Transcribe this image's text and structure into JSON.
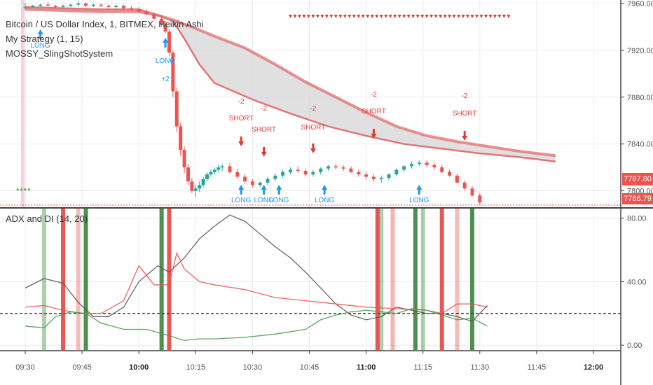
{
  "legends": {
    "symbol": "Bitcoin / US Dollar Index, 1, BITMEX, Heikin Ashi",
    "strategy": "My Strategy (1, 15)",
    "indicator": "MOSSY_SlingShotSystem",
    "adx_title": "ADX and DI (14, 20)"
  },
  "price_tags": {
    "last": "7787.80",
    "low": "7786.79"
  },
  "colors": {
    "bull": "#26a69a",
    "bear": "#ef5350",
    "long": "#2196f3",
    "short": "#e53935",
    "ema_band": "#e57373",
    "adx": "#555555",
    "di_plus": "#43a047",
    "di_minus": "#ef5350",
    "grid": "#e9ecf2",
    "axis_text": "#555555"
  },
  "chart_data": [
    {
      "type": "candlestick",
      "title": "",
      "ylim": [
        7786,
        7963
      ],
      "y_ticks": [
        7960,
        7920,
        7880,
        7840,
        7800
      ],
      "x_ticks": [
        "09:30",
        "09:45",
        "10:00",
        "10:15",
        "10:30",
        "10:45",
        "11:00",
        "11:15",
        "11:30",
        "11:45",
        "12:00"
      ],
      "x_start_minute": 570,
      "price_line": 7787.8,
      "ema_fast": [
        [
          570,
          7957
        ],
        [
          580,
          7956
        ],
        [
          590,
          7955
        ],
        [
          600,
          7955
        ],
        [
          605,
          7950
        ],
        [
          609,
          7945
        ],
        [
          612,
          7930
        ],
        [
          616,
          7908
        ],
        [
          620,
          7892
        ],
        [
          630,
          7878
        ],
        [
          640,
          7866
        ],
        [
          650,
          7855
        ],
        [
          660,
          7847
        ],
        [
          670,
          7840
        ],
        [
          680,
          7836
        ],
        [
          690,
          7832
        ],
        [
          700,
          7829
        ],
        [
          710,
          7825
        ]
      ],
      "ema_slow": [
        [
          570,
          7955
        ],
        [
          580,
          7954
        ],
        [
          590,
          7953
        ],
        [
          600,
          7953
        ],
        [
          605,
          7950
        ],
        [
          609,
          7946
        ],
        [
          614,
          7940
        ],
        [
          620,
          7932
        ],
        [
          628,
          7922
        ],
        [
          636,
          7908
        ],
        [
          644,
          7893
        ],
        [
          652,
          7880
        ],
        [
          660,
          7867
        ],
        [
          668,
          7855
        ],
        [
          676,
          7847
        ],
        [
          684,
          7842
        ],
        [
          692,
          7838
        ],
        [
          700,
          7834
        ],
        [
          710,
          7830
        ]
      ],
      "candles": [
        [
          570,
          7956,
          7960,
          7955,
          7957
        ],
        [
          572,
          7957,
          7959,
          7956,
          7958
        ],
        [
          574,
          7958,
          7960,
          7957,
          7959
        ],
        [
          576,
          7959,
          7961,
          7958,
          7958
        ],
        [
          578,
          7958,
          7959,
          7956,
          7957
        ],
        [
          580,
          7957,
          7959,
          7956,
          7958
        ],
        [
          582,
          7958,
          7960,
          7957,
          7959
        ],
        [
          584,
          7959,
          7962,
          7958,
          7960
        ],
        [
          586,
          7960,
          7961,
          7957,
          7958
        ],
        [
          588,
          7958,
          7960,
          7957,
          7959
        ],
        [
          590,
          7959,
          7960,
          7957,
          7958
        ],
        [
          592,
          7958,
          7959,
          7956,
          7957
        ],
        [
          594,
          7957,
          7959,
          7956,
          7958
        ],
        [
          596,
          7958,
          7959,
          7955,
          7956
        ],
        [
          598,
          7956,
          7958,
          7954,
          7955
        ],
        [
          600,
          7955,
          7957,
          7952,
          7953
        ],
        [
          602,
          7953,
          7955,
          7950,
          7951
        ],
        [
          604,
          7951,
          7953,
          7946,
          7947
        ],
        [
          606,
          7947,
          7950,
          7940,
          7942
        ],
        [
          607,
          7942,
          7945,
          7935,
          7936
        ],
        [
          608,
          7936,
          7938,
          7915,
          7918
        ],
        [
          609,
          7918,
          7920,
          7880,
          7885
        ],
        [
          610,
          7885,
          7888,
          7850,
          7855
        ],
        [
          611,
          7855,
          7858,
          7830,
          7835
        ],
        [
          612,
          7835,
          7838,
          7815,
          7820
        ],
        [
          613,
          7820,
          7823,
          7805,
          7808
        ],
        [
          614,
          7808,
          7811,
          7798,
          7800
        ],
        [
          615,
          7800,
          7805,
          7795,
          7802
        ],
        [
          616,
          7802,
          7808,
          7799,
          7805
        ],
        [
          617,
          7805,
          7812,
          7803,
          7810
        ],
        [
          618,
          7810,
          7816,
          7808,
          7814
        ],
        [
          619,
          7814,
          7818,
          7812,
          7816
        ],
        [
          620,
          7816,
          7820,
          7814,
          7818
        ],
        [
          621,
          7818,
          7822,
          7816,
          7820
        ],
        [
          622,
          7820,
          7823,
          7817,
          7821
        ],
        [
          624,
          7821,
          7824,
          7815,
          7816
        ],
        [
          626,
          7816,
          7819,
          7810,
          7812
        ],
        [
          628,
          7812,
          7814,
          7806,
          7808
        ],
        [
          630,
          7808,
          7810,
          7803,
          7805
        ],
        [
          632,
          7805,
          7808,
          7803,
          7807
        ],
        [
          634,
          7807,
          7812,
          7805,
          7810
        ],
        [
          636,
          7810,
          7815,
          7808,
          7813
        ],
        [
          638,
          7813,
          7818,
          7811,
          7816
        ],
        [
          640,
          7816,
          7820,
          7814,
          7818
        ],
        [
          642,
          7818,
          7821,
          7815,
          7817
        ],
        [
          644,
          7817,
          7819,
          7812,
          7814
        ],
        [
          646,
          7814,
          7818,
          7812,
          7816
        ],
        [
          648,
          7816,
          7820,
          7814,
          7819
        ],
        [
          650,
          7819,
          7822,
          7817,
          7821
        ],
        [
          652,
          7821,
          7823,
          7818,
          7820
        ],
        [
          654,
          7820,
          7822,
          7817,
          7819
        ],
        [
          656,
          7819,
          7821,
          7815,
          7816
        ],
        [
          658,
          7816,
          7818,
          7812,
          7814
        ],
        [
          660,
          7814,
          7816,
          7810,
          7812
        ],
        [
          662,
          7812,
          7814,
          7808,
          7810
        ],
        [
          664,
          7810,
          7813,
          7807,
          7811
        ],
        [
          666,
          7811,
          7815,
          7809,
          7814
        ],
        [
          668,
          7814,
          7819,
          7812,
          7818
        ],
        [
          670,
          7818,
          7822,
          7816,
          7821
        ],
        [
          672,
          7821,
          7825,
          7819,
          7823
        ],
        [
          674,
          7823,
          7826,
          7821,
          7824
        ],
        [
          676,
          7824,
          7826,
          7820,
          7822
        ],
        [
          678,
          7822,
          7824,
          7818,
          7820
        ],
        [
          680,
          7820,
          7822,
          7815,
          7816
        ],
        [
          682,
          7816,
          7818,
          7812,
          7813
        ],
        [
          684,
          7813,
          7815,
          7806,
          7807
        ],
        [
          686,
          7807,
          7809,
          7800,
          7802
        ],
        [
          688,
          7802,
          7804,
          7795,
          7796
        ],
        [
          690,
          7796,
          7798,
          7788,
          7790
        ]
      ],
      "long_signals": [
        [
          574,
          "LONG"
        ],
        [
          607,
          "LONG"
        ],
        [
          627,
          "LONG"
        ],
        [
          633,
          "LONG"
        ],
        [
          637,
          "LONG"
        ],
        [
          649,
          "LONG"
        ],
        [
          674,
          "LONG"
        ]
      ],
      "short_signals": [
        [
          627,
          "SHORT"
        ],
        [
          633,
          "SHORT"
        ],
        [
          646,
          "SHORT"
        ],
        [
          662,
          "SHORT"
        ],
        [
          686,
          "SHORT"
        ]
      ],
      "signal_values": [
        [
          607,
          "+2"
        ],
        [
          627,
          "-2"
        ],
        [
          633,
          "-2"
        ],
        [
          646,
          "-2"
        ],
        [
          662,
          "-2"
        ],
        [
          686,
          "-2"
        ]
      ]
    },
    {
      "type": "line",
      "title": "ADX and DI (14, 20)",
      "ylim": [
        -3,
        86
      ],
      "y_ticks": [
        "80.00",
        "40.00",
        "0.00"
      ],
      "hline": 20,
      "series": [
        {
          "name": "",
          "color": "#555555",
          "points": [
            [
              570,
              36
            ],
            [
              575,
              42
            ],
            [
              580,
              39
            ],
            [
              584,
              27
            ],
            [
              588,
              18
            ],
            [
              592,
              18
            ],
            [
              596,
              24
            ],
            [
              600,
              40
            ],
            [
              605,
              50
            ],
            [
              608,
              46
            ],
            [
              612,
              55
            ],
            [
              616,
              67
            ],
            [
              620,
              75
            ],
            [
              624,
              82
            ],
            [
              628,
              78
            ],
            [
              632,
              70
            ],
            [
              636,
              62
            ],
            [
              640,
              55
            ],
            [
              644,
              46
            ],
            [
              648,
              36
            ],
            [
              652,
              26
            ],
            [
              656,
              19
            ],
            [
              660,
              16
            ],
            [
              664,
              18
            ],
            [
              668,
              24
            ],
            [
              672,
              22
            ],
            [
              676,
              20
            ],
            [
              680,
              20
            ],
            [
              684,
              18
            ],
            [
              688,
              15
            ],
            [
              692,
              25
            ]
          ]
        },
        {
          "name": "",
          "color": "#ef5350",
          "points": [
            [
              570,
              24
            ],
            [
              575,
              25
            ],
            [
              580,
              22
            ],
            [
              585,
              20
            ],
            [
              590,
              20
            ],
            [
              596,
              28
            ],
            [
              600,
              50
            ],
            [
              602,
              44
            ],
            [
              604,
              38
            ],
            [
              608,
              38
            ],
            [
              610,
              58
            ],
            [
              612,
              48
            ],
            [
              616,
              40
            ],
            [
              620,
              38
            ],
            [
              628,
              35
            ],
            [
              636,
              30
            ],
            [
              644,
              28
            ],
            [
              652,
              26
            ],
            [
              660,
              24
            ],
            [
              668,
              23
            ],
            [
              676,
              22
            ],
            [
              680,
              20
            ],
            [
              684,
              26
            ],
            [
              688,
              26
            ],
            [
              692,
              24
            ]
          ]
        },
        {
          "name": "",
          "color": "#43a047",
          "points": [
            [
              570,
              12
            ],
            [
              575,
              11
            ],
            [
              578,
              18
            ],
            [
              582,
              21
            ],
            [
              586,
              20
            ],
            [
              590,
              14
            ],
            [
              596,
              10
            ],
            [
              602,
              10
            ],
            [
              608,
              6
            ],
            [
              612,
              3
            ],
            [
              616,
              4
            ],
            [
              620,
              4
            ],
            [
              628,
              5
            ],
            [
              636,
              7
            ],
            [
              644,
              10
            ],
            [
              648,
              16
            ],
            [
              652,
              19
            ],
            [
              656,
              21
            ],
            [
              660,
              22
            ],
            [
              664,
              21
            ],
            [
              668,
              20
            ],
            [
              672,
              23
            ],
            [
              676,
              22
            ],
            [
              680,
              19
            ],
            [
              684,
              16
            ],
            [
              688,
              17
            ],
            [
              692,
              12
            ]
          ]
        }
      ],
      "green_bars": [
        [
          575,
          0.45
        ],
        [
          586,
          1
        ],
        [
          606,
          1
        ],
        [
          664,
          0.45
        ],
        [
          673,
          1
        ],
        [
          675,
          0.45
        ],
        [
          688,
          1
        ]
      ],
      "red_bars": [
        [
          580,
          1
        ],
        [
          584,
          0.4
        ],
        [
          608,
          1
        ],
        [
          663,
          1
        ],
        [
          667,
          0.45
        ],
        [
          680,
          1
        ],
        [
          684,
          0.4
        ]
      ]
    }
  ]
}
